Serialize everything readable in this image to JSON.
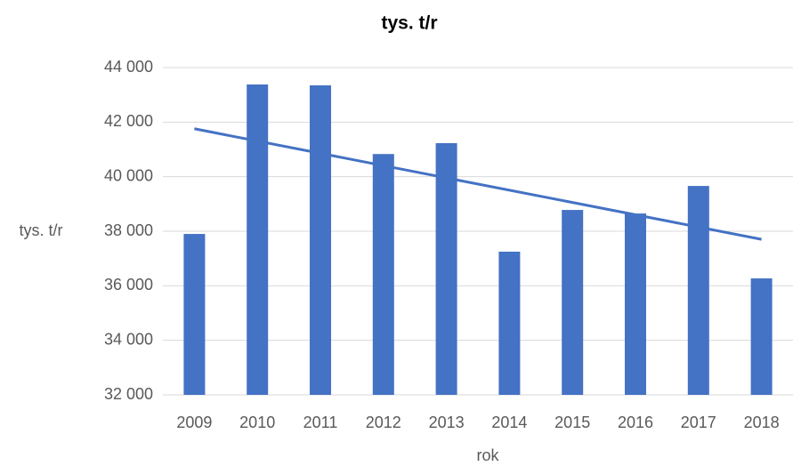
{
  "chart_data": {
    "type": "bar",
    "title": "tys. t/r",
    "x_label": "rok",
    "y_label": "tys. t/r",
    "categories": [
      "2009",
      "2010",
      "2011",
      "2012",
      "2013",
      "2014",
      "2015",
      "2016",
      "2017",
      "2018"
    ],
    "values": [
      37900,
      43380,
      43350,
      40830,
      41230,
      37250,
      38780,
      38650,
      39660,
      36270
    ],
    "color": "#4472c4",
    "trendline": "linear",
    "ylim": [
      32000,
      44000
    ],
    "yticks": [
      {
        "value": 32000,
        "label": "32 000"
      },
      {
        "value": 34000,
        "label": "34 000"
      },
      {
        "value": 36000,
        "label": "36 000"
      },
      {
        "value": 38000,
        "label": "38 000"
      },
      {
        "value": 40000,
        "label": "40 000"
      },
      {
        "value": 42000,
        "label": "42 000"
      },
      {
        "value": 44000,
        "label": "44 000"
      }
    ],
    "grid": true
  }
}
